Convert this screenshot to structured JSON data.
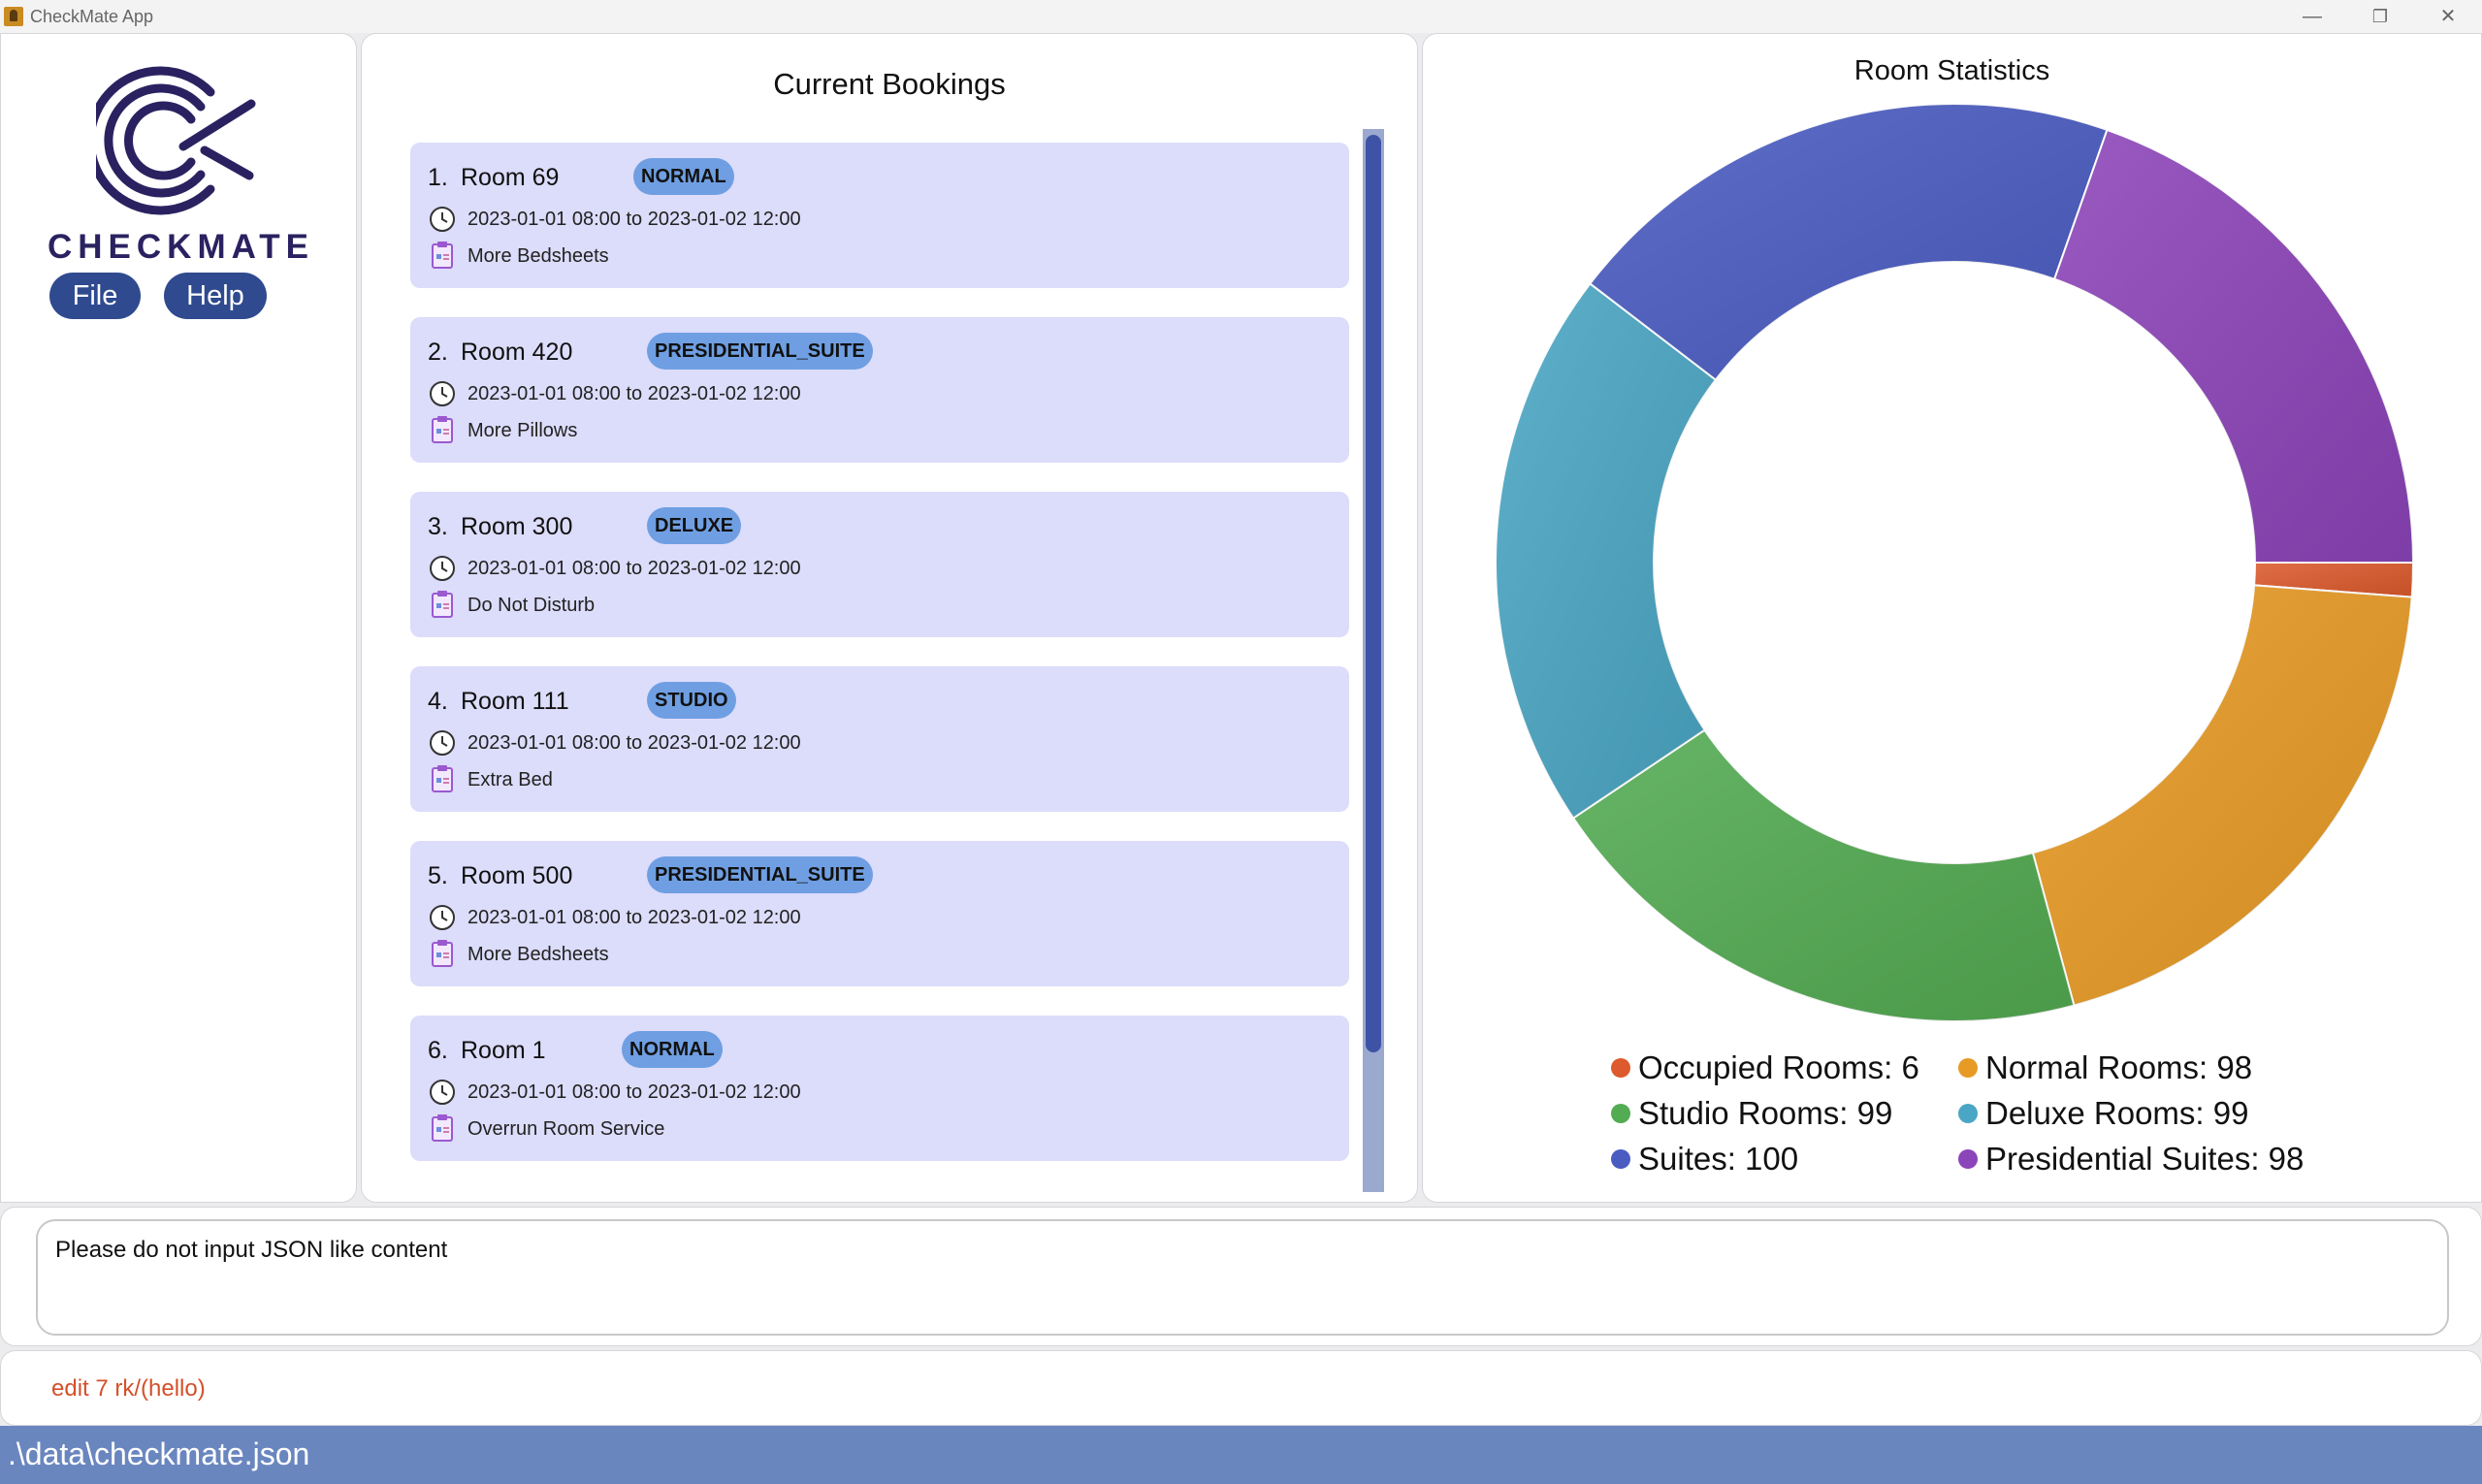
{
  "window": {
    "title": "CheckMate App",
    "controls": {
      "minimize": "—",
      "restore": "❐",
      "close": "✕"
    }
  },
  "sidebar": {
    "brand": "CHECKMATE",
    "logo_colors": {
      "ring": "#2a2260"
    },
    "menu": [
      {
        "label": "File"
      },
      {
        "label": "Help"
      }
    ]
  },
  "bookings": {
    "title": "Current Bookings",
    "items": [
      {
        "index": "1.",
        "room": "Room 69",
        "type": "NORMAL",
        "time": "2023-01-01 08:00 to 2023-01-02 12:00",
        "note": "More Bedsheets"
      },
      {
        "index": "2.",
        "room": "Room 420",
        "type": "PRESIDENTIAL_SUITE",
        "time": "2023-01-01 08:00 to 2023-01-02 12:00",
        "note": "More Pillows"
      },
      {
        "index": "3.",
        "room": "Room 300",
        "type": "DELUXE",
        "time": "2023-01-01 08:00 to 2023-01-02 12:00",
        "note": "Do Not Disturb"
      },
      {
        "index": "4.",
        "room": "Room 111",
        "type": "STUDIO",
        "time": "2023-01-01 08:00 to 2023-01-02 12:00",
        "note": "Extra Bed"
      },
      {
        "index": "5.",
        "room": "Room 500",
        "type": "PRESIDENTIAL_SUITE",
        "time": "2023-01-01 08:00 to 2023-01-02 12:00",
        "note": "More Bedsheets"
      },
      {
        "index": "6.",
        "room": "Room 1",
        "type": "NORMAL",
        "time": "2023-01-01 08:00 to 2023-01-02 12:00",
        "note": "Overrun Room Service"
      }
    ]
  },
  "stats": {
    "title": "Room Statistics",
    "legend": [
      {
        "label": "Occupied Rooms: 6"
      },
      {
        "label": "Normal Rooms: 98"
      },
      {
        "label": "Studio Rooms: 99"
      },
      {
        "label": "Deluxe Rooms: 99"
      },
      {
        "label": "Suites: 100"
      },
      {
        "label": "Presidential Suites: 98"
      }
    ]
  },
  "chart_data": {
    "type": "pie",
    "title": "Room Statistics",
    "categories": [
      "Occupied Rooms",
      "Normal Rooms",
      "Studio Rooms",
      "Deluxe Rooms",
      "Suites",
      "Presidential Suites"
    ],
    "values": [
      6,
      98,
      99,
      99,
      100,
      98
    ],
    "colors": [
      "#dc5a2d",
      "#e79a24",
      "#53ab52",
      "#4aa6c4",
      "#4a5cc2",
      "#8c44b9"
    ],
    "donut": true,
    "legend_position": "bottom"
  },
  "result": {
    "message": "Please do not input JSON like content"
  },
  "command": {
    "value": "edit 7 rk/(hello)"
  },
  "status": {
    "path": ".\\data\\checkmate.json"
  }
}
